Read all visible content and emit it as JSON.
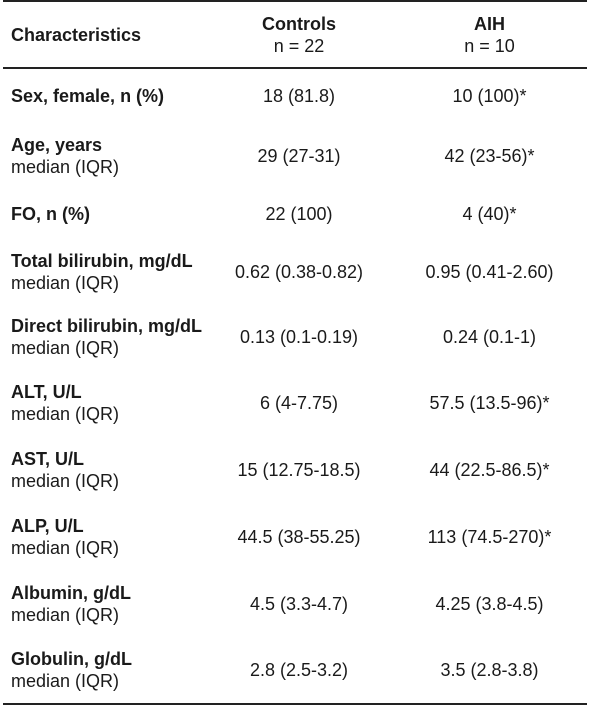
{
  "header": {
    "characteristics": "Characteristics",
    "controls_label": "Controls",
    "controls_n": "n = 22",
    "aih_label": "AIH",
    "aih_n": "n = 10"
  },
  "rows": [
    {
      "label": "Sex, female, n (%)",
      "sub": "",
      "controls": "18 (81.8)",
      "aih": "10 (100)*"
    },
    {
      "label": "Age, years",
      "sub": "median (IQR)",
      "controls": "29 (27-31)",
      "aih": "42 (23-56)*"
    },
    {
      "label": "FO, n (%)",
      "sub": "",
      "controls": "22 (100)",
      "aih": "4 (40)*"
    },
    {
      "label": "Total bilirubin, mg/dL",
      "sub": "median (IQR)",
      "controls": "0.62 (0.38-0.82)",
      "aih": "0.95 (0.41-2.60)"
    },
    {
      "label": "Direct bilirubin, mg/dL",
      "sub": "median (IQR)",
      "controls": "0.13 (0.1-0.19)",
      "aih": "0.24 (0.1-1)"
    },
    {
      "label": "ALT, U/L",
      "sub": "median (IQR)",
      "controls": "6 (4-7.75)",
      "aih": "57.5 (13.5-96)*"
    },
    {
      "label": "AST, U/L",
      "sub": "median (IQR)",
      "controls": "15 (12.75-18.5)",
      "aih": "44 (22.5-86.5)*"
    },
    {
      "label": "ALP, U/L",
      "sub": "median (IQR)",
      "controls": "44.5 (38-55.25)",
      "aih": "113 (74.5-270)*"
    },
    {
      "label": "Albumin, g/dL",
      "sub": "median (IQR)",
      "controls": "4.5 (3.3-4.7)",
      "aih": "4.25 (3.8-4.5)"
    },
    {
      "label": "Globulin, g/dL",
      "sub": "median (IQR)",
      "controls": "2.8 (2.5-3.2)",
      "aih": "3.5 (2.8-3.8)"
    }
  ]
}
